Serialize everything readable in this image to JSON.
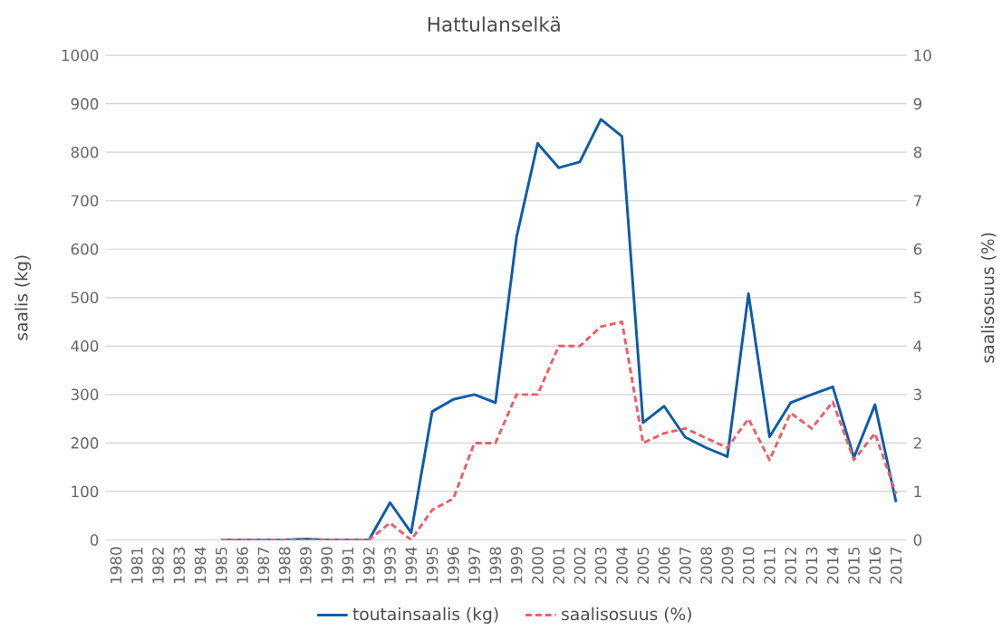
{
  "chart_data": {
    "type": "line",
    "title": "Hattulanselkä",
    "ylabel": "saalis (kg)",
    "y2label": "saalisosuus (%)",
    "categories": [
      "1980",
      "1981",
      "1982",
      "1983",
      "1984",
      "1985",
      "1986",
      "1987",
      "1988",
      "1989",
      "1990",
      "1991",
      "1992",
      "1993",
      "1994",
      "1995",
      "1996",
      "1997",
      "1998",
      "1999",
      "2000",
      "2001",
      "2002",
      "2003",
      "2004",
      "2005",
      "2006",
      "2007",
      "2008",
      "2009",
      "2010",
      "2011",
      "2012",
      "2013",
      "2014",
      "2015",
      "2016",
      "2017"
    ],
    "series": [
      {
        "name": "toutainsaalis (kg)",
        "color": "#0e5ca8",
        "line_style": "solid",
        "values": [
          null,
          null,
          null,
          null,
          null,
          0,
          0,
          0,
          0,
          2,
          0,
          0,
          0,
          77,
          15,
          265,
          290,
          300,
          283,
          625,
          818,
          768,
          780,
          868,
          833,
          242,
          276,
          212,
          190,
          172,
          508,
          213,
          283,
          300,
          316,
          170,
          279,
          78
        ]
      },
      {
        "name": "saalisosuus (%)",
        "color": "#e8606a",
        "line_style": "dashed",
        "axis": "y2",
        "values": [
          null,
          null,
          null,
          null,
          null,
          0,
          0,
          0,
          0,
          0,
          0,
          0,
          0,
          0.35,
          0,
          0.62,
          0.85,
          2.0,
          2.0,
          3.0,
          3.0,
          4.0,
          4.0,
          4.4,
          4.5,
          2.0,
          2.2,
          2.3,
          2.1,
          1.9,
          2.5,
          1.65,
          2.62,
          2.3,
          2.85,
          1.65,
          2.2,
          0.95
        ]
      }
    ],
    "ylim": [
      0,
      1000
    ],
    "yticks": [
      0,
      100,
      200,
      300,
      400,
      500,
      600,
      700,
      800,
      900,
      1000
    ],
    "y2lim": [
      0,
      10
    ],
    "y2ticks": [
      0,
      1,
      2,
      3,
      4,
      5,
      6,
      7,
      8,
      9,
      10
    ],
    "grid": "y",
    "legend": "bottom"
  }
}
